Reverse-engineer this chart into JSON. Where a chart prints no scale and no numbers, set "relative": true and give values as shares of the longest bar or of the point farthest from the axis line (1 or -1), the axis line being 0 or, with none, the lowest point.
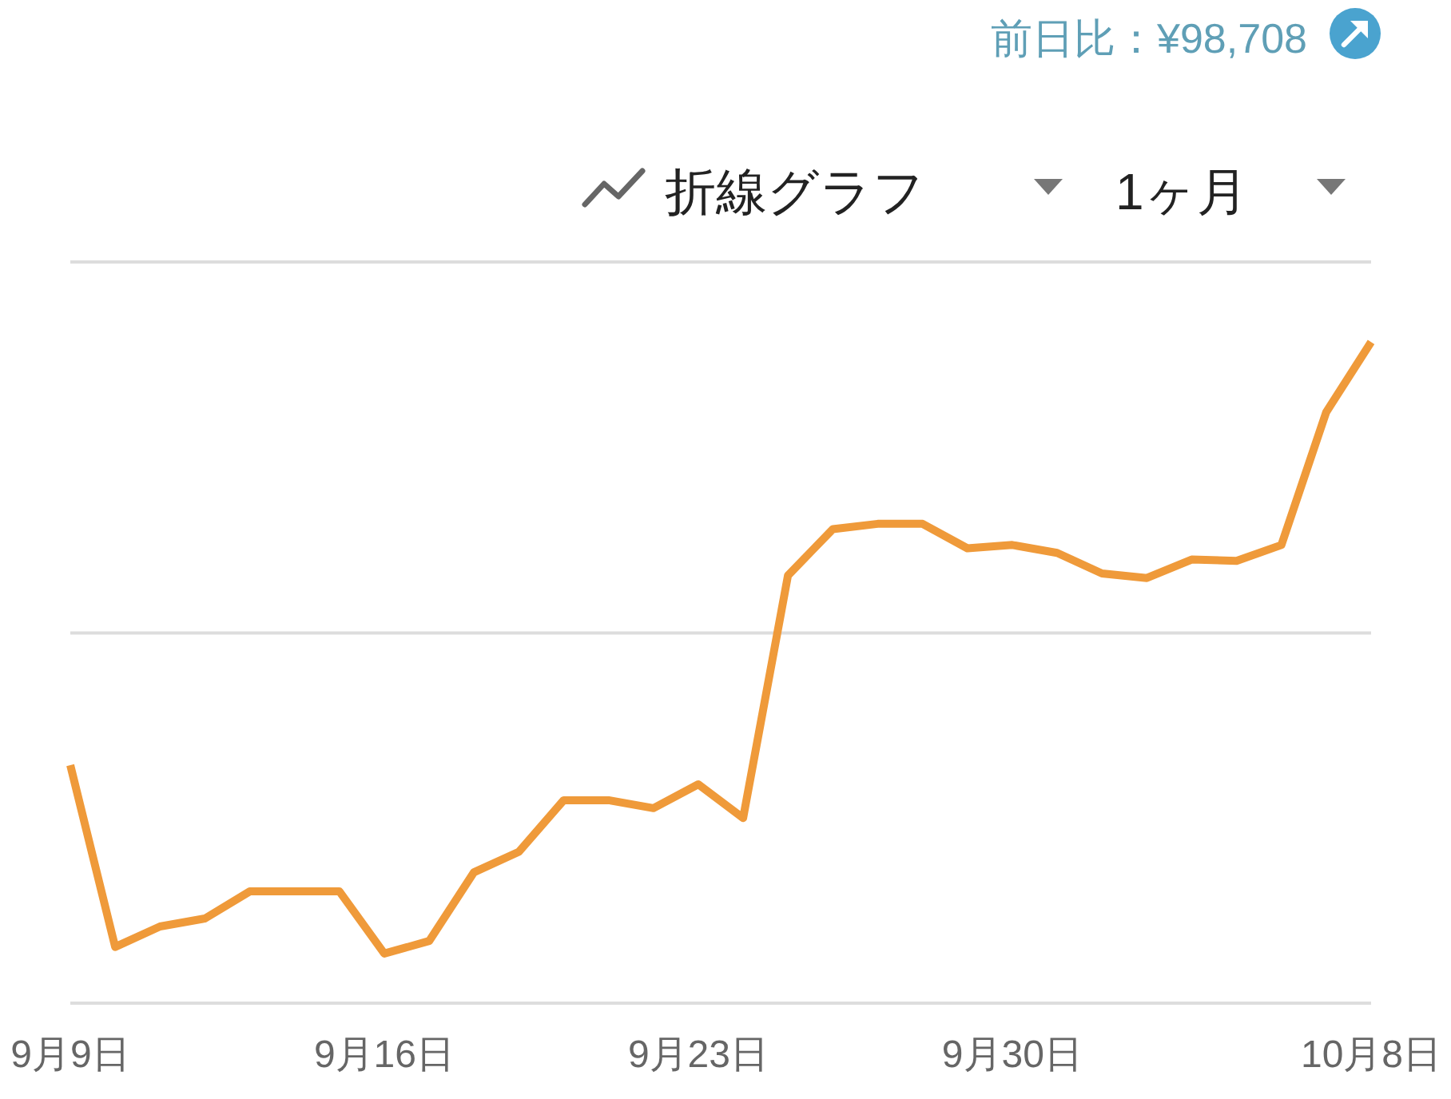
{
  "chart_data": {
    "type": "line",
    "relative": true,
    "annotations": [
      "前日比：¥98,708",
      "折線グラフ",
      "1ヶ月"
    ],
    "x": [
      "--09-09",
      "--09-10",
      "--09-11",
      "--09-12",
      "--09-13",
      "--09-14",
      "--09-15",
      "--09-16",
      "--09-17",
      "--09-18",
      "--09-19",
      "--09-20",
      "--09-21",
      "--09-22",
      "--09-23",
      "--09-24",
      "--09-25",
      "--09-26",
      "--09-27",
      "--09-28",
      "--09-29",
      "--09-30",
      "--10-01",
      "--10-02",
      "--10-03",
      "--10-04",
      "--10-05",
      "--10-06",
      "--10-07",
      "--10-08"
    ],
    "xlim": [
      "--09-09",
      "--10-08"
    ],
    "xticks": [
      {
        "value": "--09-09",
        "label": "9月9日"
      },
      {
        "value": "--09-16",
        "label": "9月16日"
      },
      {
        "value": "--09-23",
        "label": "9月23日"
      },
      {
        "value": "--09-30",
        "label": "9月30日"
      },
      {
        "value": "--10-08",
        "label": "10月8日"
      }
    ],
    "ref_lines": [
      {
        "axis": "y",
        "value": 0.56,
        "color": "#dddddd"
      }
    ],
    "series": [
      {
        "color": "#ef9a3a",
        "values": [
          0.36,
          0.085,
          0.116,
          0.128,
          0.169,
          0.169,
          0.169,
          0.075,
          0.094,
          0.198,
          0.229,
          0.307,
          0.307,
          0.295,
          0.331,
          0.28,
          0.647,
          0.717,
          0.725,
          0.725,
          0.688,
          0.693,
          0.681,
          0.65,
          0.643,
          0.671,
          0.669,
          0.693,
          0.894,
          1.0
        ]
      }
    ]
  }
}
